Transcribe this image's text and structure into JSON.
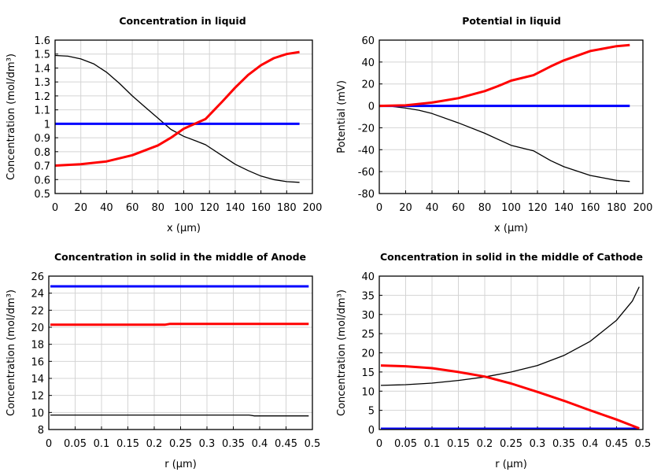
{
  "chart_data": [
    {
      "type": "line",
      "title": "Concentration in liquid",
      "xlabel": "x (µm)",
      "ylabel": "Concentration (mol/dm³)",
      "xlim": [
        0,
        200
      ],
      "ylim": [
        0.5,
        1.6
      ],
      "xticks": [
        "0",
        "20",
        "40",
        "60",
        "80",
        "100",
        "120",
        "140",
        "160",
        "180",
        "200"
      ],
      "yticks": [
        "0.5",
        "0.6",
        "0.7",
        "0.8",
        "0.9",
        "1",
        "1.1",
        "1.2",
        "1.3",
        "1.4",
        "1.5",
        "1.6"
      ],
      "grid": true,
      "series": [
        {
          "color": "#000000",
          "x": [
            0,
            10,
            20,
            30,
            40,
            50,
            60,
            70,
            80,
            90,
            100,
            110,
            117,
            130,
            140,
            150,
            160,
            170,
            180,
            190
          ],
          "y": [
            1.49,
            1.485,
            1.465,
            1.43,
            1.37,
            1.29,
            1.2,
            1.12,
            1.04,
            0.96,
            0.91,
            0.875,
            0.85,
            0.77,
            0.71,
            0.665,
            0.625,
            0.6,
            0.585,
            0.58
          ]
        },
        {
          "color": "#0000ff",
          "x": [
            0,
            190
          ],
          "y": [
            1,
            1
          ]
        },
        {
          "color": "#ff0000",
          "x": [
            0,
            20,
            40,
            60,
            80,
            90,
            100,
            117,
            130,
            140,
            150,
            160,
            170,
            180,
            190
          ],
          "y": [
            0.7,
            0.71,
            0.73,
            0.775,
            0.845,
            0.9,
            0.965,
            1.035,
            1.16,
            1.26,
            1.35,
            1.42,
            1.47,
            1.5,
            1.515
          ]
        }
      ]
    },
    {
      "type": "line",
      "title": "Potential in liquid",
      "xlabel": "x (µm)",
      "ylabel": "Potential (mV)",
      "xlim": [
        0,
        200
      ],
      "ylim": [
        -80,
        60
      ],
      "xticks": [
        "0",
        "20",
        "40",
        "60",
        "80",
        "100",
        "120",
        "140",
        "160",
        "180",
        "200"
      ],
      "yticks": [
        "-80",
        "-60",
        "-40",
        "-20",
        "0",
        "20",
        "40",
        "60"
      ],
      "grid": true,
      "series": [
        {
          "color": "#000000",
          "x": [
            0,
            10,
            20,
            30,
            40,
            60,
            80,
            100,
            117,
            130,
            140,
            160,
            180,
            190
          ],
          "y": [
            0,
            -0.5,
            -2,
            -4,
            -7,
            -15.5,
            -25,
            -36,
            -41,
            -50,
            -55.5,
            -63.5,
            -68,
            -69
          ]
        },
        {
          "color": "#0000ff",
          "x": [
            0,
            190
          ],
          "y": [
            0,
            0
          ]
        },
        {
          "color": "#ff0000",
          "x": [
            0,
            20,
            40,
            60,
            80,
            90,
            100,
            117,
            130,
            140,
            160,
            180,
            190
          ],
          "y": [
            0,
            0.5,
            3,
            7,
            13.5,
            18,
            23,
            28,
            36,
            41.5,
            50,
            54.5,
            55.5
          ]
        }
      ]
    },
    {
      "type": "line",
      "title": "Concentration in solid in the middle of Anode",
      "xlabel": "r (µm)",
      "ylabel": "Concentration (mol/dm³)",
      "xlim": [
        0,
        0.5
      ],
      "ylim": [
        8,
        26
      ],
      "xticks": [
        "0",
        "0.05",
        "0.1",
        "0.15",
        "0.2",
        "0.25",
        "0.3",
        "0.35",
        "0.4",
        "0.45",
        "0.5"
      ],
      "yticks": [
        "8",
        "10",
        "12",
        "14",
        "16",
        "18",
        "20",
        "22",
        "24",
        "26"
      ],
      "grid": true,
      "series": [
        {
          "color": "#000000",
          "x": [
            0.003,
            0.38,
            0.39,
            0.493
          ],
          "y": [
            9.7,
            9.7,
            9.6,
            9.6
          ]
        },
        {
          "color": "#0000ff",
          "x": [
            0.003,
            0.493
          ],
          "y": [
            24.8,
            24.8
          ]
        },
        {
          "color": "#ff0000",
          "x": [
            0.003,
            0.22,
            0.23,
            0.493
          ],
          "y": [
            20.3,
            20.3,
            20.4,
            20.4
          ]
        }
      ]
    },
    {
      "type": "line",
      "title": "Concentration in solid in the middle of Cathode",
      "xlabel": "r (µm)",
      "ylabel": "Concentration (mol/dm³)",
      "xlim": [
        0,
        0.5
      ],
      "ylim": [
        0,
        40
      ],
      "xticks": [
        "0",
        "0.05",
        "0.1",
        "0.15",
        "0.2",
        "0.25",
        "0.3",
        "0.35",
        "0.4",
        "0.45",
        "0.5"
      ],
      "yticks": [
        "0",
        "5",
        "10",
        "15",
        "20",
        "25",
        "30",
        "35",
        "40"
      ],
      "grid": true,
      "series": [
        {
          "color": "#000000",
          "x": [
            0.003,
            0.05,
            0.1,
            0.15,
            0.2,
            0.25,
            0.3,
            0.35,
            0.4,
            0.45,
            0.48,
            0.493
          ],
          "y": [
            11.5,
            11.7,
            12.1,
            12.8,
            13.7,
            15,
            16.7,
            19.3,
            23,
            28.5,
            33.5,
            37.2
          ]
        },
        {
          "color": "#0000ff",
          "x": [
            0.003,
            0.493
          ],
          "y": [
            0.2,
            0.2
          ]
        },
        {
          "color": "#ff0000",
          "x": [
            0.003,
            0.05,
            0.1,
            0.15,
            0.2,
            0.25,
            0.3,
            0.35,
            0.4,
            0.45,
            0.493
          ],
          "y": [
            16.7,
            16.5,
            16,
            15,
            13.8,
            12,
            9.8,
            7.5,
            5,
            2.6,
            0.3
          ]
        }
      ]
    }
  ]
}
